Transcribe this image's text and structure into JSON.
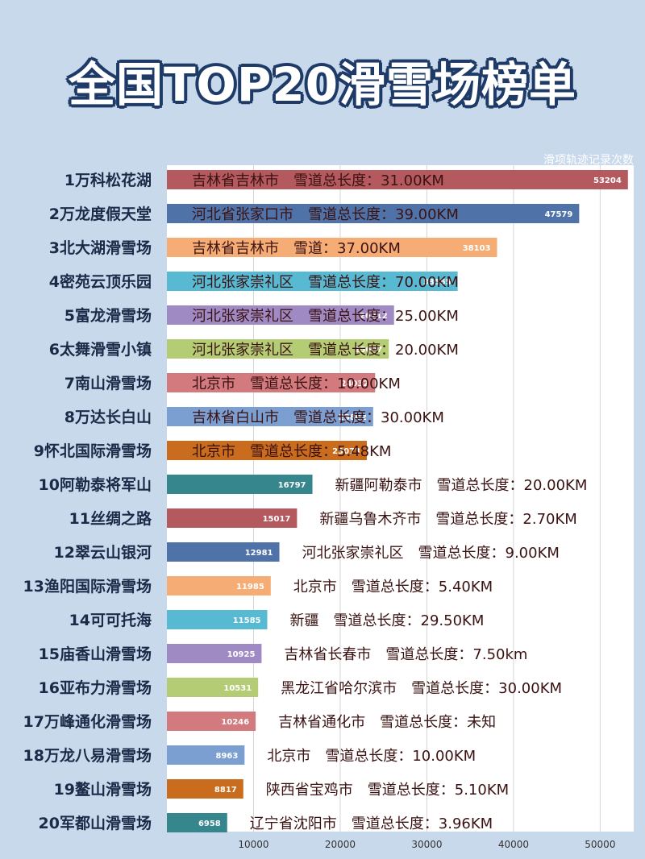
{
  "title": "全国TOP20滑雪场榜单",
  "legend": "滑项轨迹记录次数",
  "colors": {
    "background": "#c9d9ec",
    "title_outline": "#1e3a66",
    "palette": [
      "#b45a5e",
      "#4f72a8",
      "#f5ad75",
      "#58b9d3",
      "#a08ac4",
      "#b4cd74",
      "#d27a7d",
      "#7c9fd1",
      "#c96c1d",
      "#35868d"
    ]
  },
  "chart_data": {
    "type": "bar",
    "orientation": "horizontal",
    "series_label": "滑项轨迹记录次数",
    "categories": [
      "1万科松花湖",
      "2万龙度假天堂",
      "3北大湖滑雪场",
      "4密苑云顶乐园",
      "5富龙滑雪场",
      "6太舞滑雪小镇",
      "7南山滑雪场",
      "8万达长白山",
      "9怀北国际滑雪场",
      "10阿勒泰将军山",
      "11丝绸之路",
      "12翠云山银河",
      "13渔阳国际滑雪场",
      "14可可托海",
      "15庙香山滑雪场",
      "16亚布力滑雪场",
      "17万峰通化滑雪场",
      "18万龙八易滑雪场",
      "19鳌山滑雪场",
      "20军都山滑雪场"
    ],
    "values": [
      53204,
      47579,
      38103,
      33555,
      26212,
      25607,
      24032,
      23802,
      23073,
      16797,
      15017,
      12981,
      11985,
      11585,
      10925,
      10531,
      10246,
      8963,
      8817,
      6958
    ],
    "annotations": [
      "吉林省吉林市　雪道总长度：31.00KM",
      "河北省张家口市　雪道总长度：39.00KM",
      "吉林省吉林市　雪道：37.00KM",
      "河北张家崇礼区　雪道总长度：70.00KM",
      "河北张家崇礼区　雪道总长度：25.00KM",
      "河北张家崇礼区　雪道总长度：20.00KM",
      "北京市　雪道总长度：10.00KM",
      "吉林省白山市　雪道总长度：30.00KM",
      "北京市　雪道总长度：5.48KM",
      "新疆阿勒泰市　雪道总长度：20.00KM",
      "新疆乌鲁木齐市　雪道总长度：2.70KM",
      "河北张家崇礼区　雪道总长度：9.00KM",
      "北京市　雪道总长度：5.40KM",
      "新疆　雪道总长度：29.50KM",
      "吉林省长春市　雪道总长度：7.50km",
      "黑龙江省哈尔滨市　雪道总长度：30.00KM",
      "吉林省通化市　雪道总长度：未知",
      "北京市　雪道总长度：10.00KM",
      "陕西省宝鸡市　雪道总长度：5.10KM",
      "辽宁省沈阳市　雪道总长度：3.96KM"
    ],
    "xlim": [
      0,
      53500
    ],
    "xticks": [
      10000,
      20000,
      30000,
      40000,
      50000
    ],
    "grid": true
  }
}
